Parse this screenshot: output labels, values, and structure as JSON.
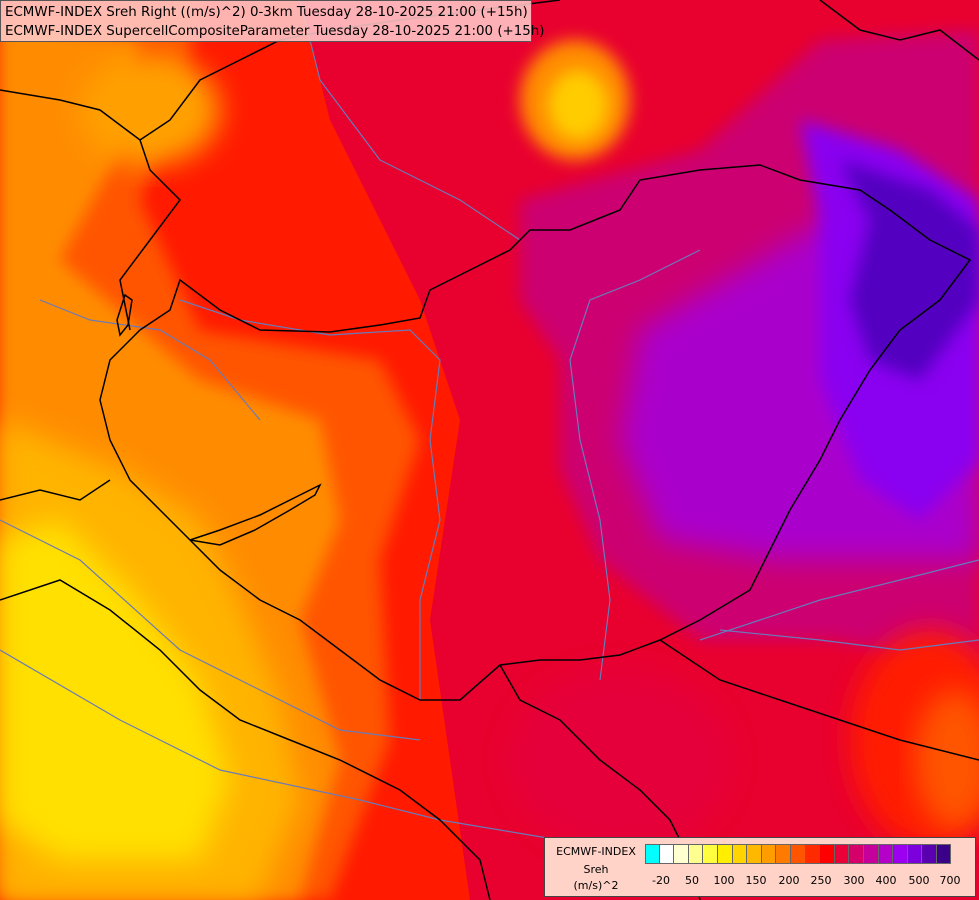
{
  "header": {
    "line1": "ECMWF-INDEX Sreh Right ((m/s)^2) 0-3km Tuesday 28-10-2025 21:00 (+15h)",
    "line2": "ECMWF-INDEX SupercellCompositeParameter Tuesday 28-10-2025 21:00 (+15h)"
  },
  "legend": {
    "name": "ECMWF-INDEX",
    "variable": "Sreh",
    "unit": "(m/s)^2",
    "colors": [
      "#00ffff",
      "#ffffff",
      "#ffffd0",
      "#ffff90",
      "#ffff40",
      "#ffee00",
      "#ffd400",
      "#ffb800",
      "#ff9d00",
      "#ff7a00",
      "#ff5500",
      "#ff2a00",
      "#ff0000",
      "#ec0038",
      "#d6006a",
      "#c6009a",
      "#b400c8",
      "#9d00f0",
      "#7c00dc",
      "#5a00b0",
      "#3a0088"
    ],
    "ticks": [
      "-20",
      "50",
      "100",
      "150",
      "200",
      "250",
      "300",
      "400",
      "500",
      "700"
    ]
  },
  "map": {
    "colors": {
      "background": "#e8002e",
      "yellow": "#ffe000",
      "light_orange": "#ffb400",
      "orange": "#ff8c00",
      "dark_orange": "#ff5500",
      "red": "#ff1a00",
      "crimson": "#e5003a",
      "magenta": "#cc0070",
      "purple": "#aa00cc",
      "violet": "#8a00f0",
      "indigo": "#5200c0",
      "border": "#000000",
      "river": "#6a7ab8"
    }
  }
}
